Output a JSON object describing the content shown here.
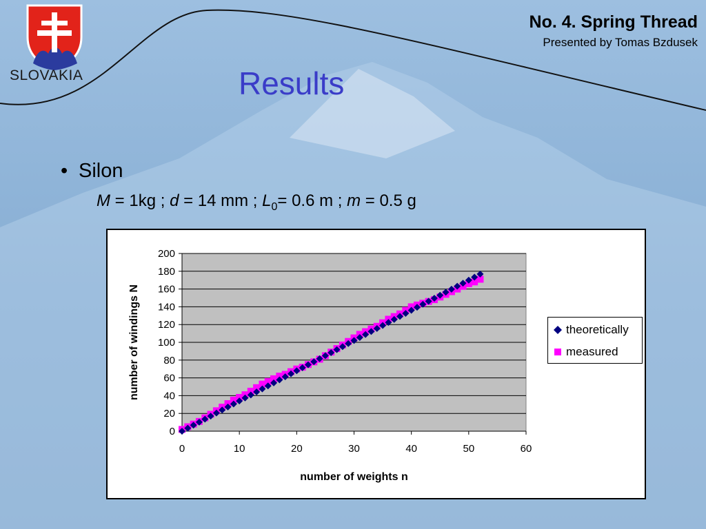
{
  "header": {
    "title": "No. 4. Spring Thread",
    "subtitle": "Presented by Tomas Bzdusek"
  },
  "logo": {
    "country": "SLOVAKIA"
  },
  "slide": {
    "title": "Results",
    "bullet": "Silon"
  },
  "params": {
    "M_sym": "M",
    "M_val": " = 1kg ; ",
    "d_sym": "d",
    "d_val": " = 14 mm ; ",
    "L_sym": "L",
    "L_sub": "0",
    "L_val": "= 0.6 m ; ",
    "m_sym": "m",
    "m_val": " = 0.5 g"
  },
  "colors": {
    "title": "#3a3cc8",
    "theoretical": "#000080",
    "measured": "#ff00ff",
    "plot_bg": "#c0c0c0"
  },
  "chart_data": {
    "type": "scatter",
    "xlabel": "number of weights n",
    "ylabel": "number of windings N",
    "xlim": [
      0,
      60
    ],
    "ylim": [
      0,
      200
    ],
    "xticks": [
      0,
      10,
      20,
      30,
      40,
      50,
      60
    ],
    "yticks": [
      0,
      20,
      40,
      60,
      80,
      100,
      120,
      140,
      160,
      180,
      200
    ],
    "grid": "horizontal",
    "legend_position": "right",
    "series": [
      {
        "name": "theoretically",
        "marker": "diamond",
        "x": [
          0,
          1,
          2,
          3,
          4,
          5,
          6,
          7,
          8,
          9,
          10,
          11,
          12,
          13,
          14,
          15,
          16,
          17,
          18,
          19,
          20,
          21,
          22,
          23,
          24,
          25,
          26,
          27,
          28,
          29,
          30,
          31,
          32,
          33,
          34,
          35,
          36,
          37,
          38,
          39,
          40,
          41,
          42,
          43,
          44,
          45,
          46,
          47,
          48,
          49,
          50,
          51,
          52
        ],
        "y": [
          0,
          3.4,
          6.8,
          10.2,
          13.6,
          17,
          20.4,
          23.8,
          27.2,
          30.6,
          34,
          37.4,
          40.8,
          44.2,
          47.6,
          51,
          54.4,
          57.8,
          61.2,
          64.6,
          68,
          71.4,
          74.8,
          78.2,
          81.6,
          85,
          88.4,
          91.8,
          95.2,
          98.6,
          102,
          105.4,
          108.8,
          112.2,
          115.6,
          119,
          122.4,
          125.8,
          129.2,
          132.6,
          136,
          139.4,
          142.8,
          146.2,
          149.6,
          153,
          156.4,
          159.8,
          163.2,
          166.6,
          170,
          173.4,
          176.8
        ]
      },
      {
        "name": "measured",
        "marker": "square",
        "x": [
          0,
          1,
          2,
          3,
          4,
          5,
          6,
          7,
          8,
          9,
          10,
          11,
          12,
          13,
          14,
          15,
          16,
          17,
          18,
          19,
          20,
          21,
          22,
          23,
          24,
          25,
          26,
          27,
          28,
          29,
          30,
          31,
          32,
          33,
          34,
          35,
          36,
          37,
          38,
          39,
          40,
          41,
          42,
          43,
          44,
          45,
          46,
          47,
          48,
          49,
          50,
          51,
          52
        ],
        "y": [
          2,
          5,
          8,
          11,
          15,
          19,
          23,
          27,
          31,
          35,
          38,
          41,
          45,
          49,
          53,
          56,
          59,
          62,
          64,
          67,
          70,
          72,
          75,
          78,
          81,
          85,
          89,
          93,
          97,
          101,
          105,
          109,
          112,
          115,
          118,
          122,
          126,
          129,
          132,
          136,
          140,
          142,
          144,
          146,
          148,
          151,
          154,
          157,
          160,
          163,
          166,
          168,
          171
        ]
      }
    ]
  }
}
